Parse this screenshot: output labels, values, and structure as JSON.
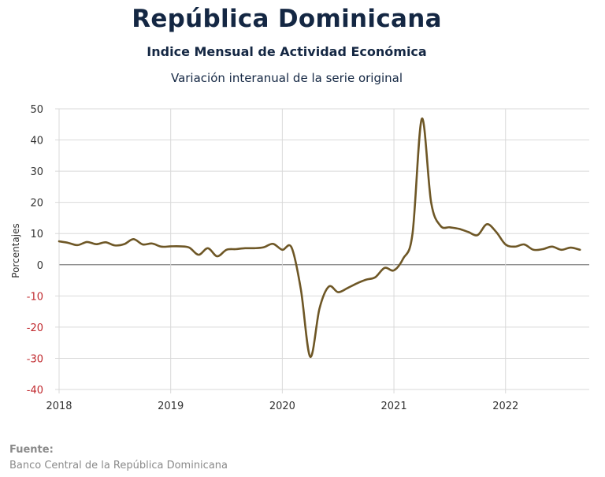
{
  "header": {
    "title": "República Dominicana",
    "subtitle": "Indice Mensual de  Actividad Económica",
    "subtitle2": "Variación interanual de la serie original"
  },
  "footer": {
    "source_label": "Fuente:",
    "source_text": "Banco Central de la República Dominicana"
  },
  "colors": {
    "line": "#6e5726",
    "negative_tick": "#c0282d",
    "text": "#142743",
    "grid": "#d9d9d9",
    "zero_line": "#7f7f7f"
  },
  "chart_data": {
    "type": "line",
    "title": "",
    "xlabel": "",
    "ylabel": "Porcentajes",
    "ylim": [
      -40,
      50
    ],
    "yticks": [
      "50",
      "40",
      "30",
      "20",
      "10",
      "0",
      "-10",
      "-20",
      "-30",
      "-40"
    ],
    "xticks": [
      "2018",
      "2019",
      "2020",
      "2021",
      "2022"
    ],
    "grid": true,
    "x_start": "2018-01",
    "series": [
      {
        "values": [
          7.5,
          7.0,
          6.3,
          7.3,
          6.6,
          7.2,
          6.2,
          6.6,
          8.2,
          6.5,
          6.8,
          5.8,
          5.9,
          5.9,
          5.5,
          3.2,
          5.3,
          2.7,
          4.8,
          5.0,
          5.3,
          5.3,
          5.6,
          6.7,
          4.8,
          5.5,
          -8.0,
          -29.5,
          -14.0,
          -7.0,
          -8.8,
          -7.5,
          -6.0,
          -4.8,
          -4.0,
          -1.0,
          -1.8,
          2.0,
          10.0,
          46.8,
          20.0,
          12.5,
          12.0,
          11.5,
          10.5,
          9.5,
          13.0,
          10.5,
          6.5,
          5.8,
          6.5,
          4.8,
          5.0,
          5.8,
          4.8,
          5.5,
          4.8
        ]
      }
    ]
  }
}
